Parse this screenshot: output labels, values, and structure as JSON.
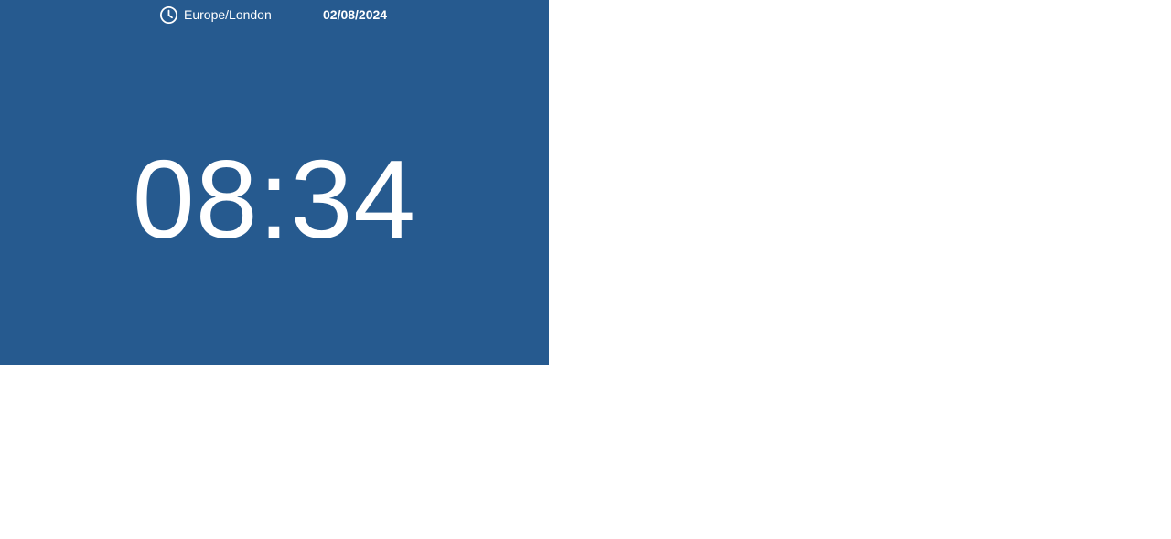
{
  "clock": {
    "timezone": "Europe/London",
    "date": "02/08/2024",
    "time": "08:34",
    "timezone_icon": "clock-icon",
    "colors": {
      "background": "#265A8F",
      "text": "#ffffff",
      "page_background": "#ffffff"
    }
  }
}
